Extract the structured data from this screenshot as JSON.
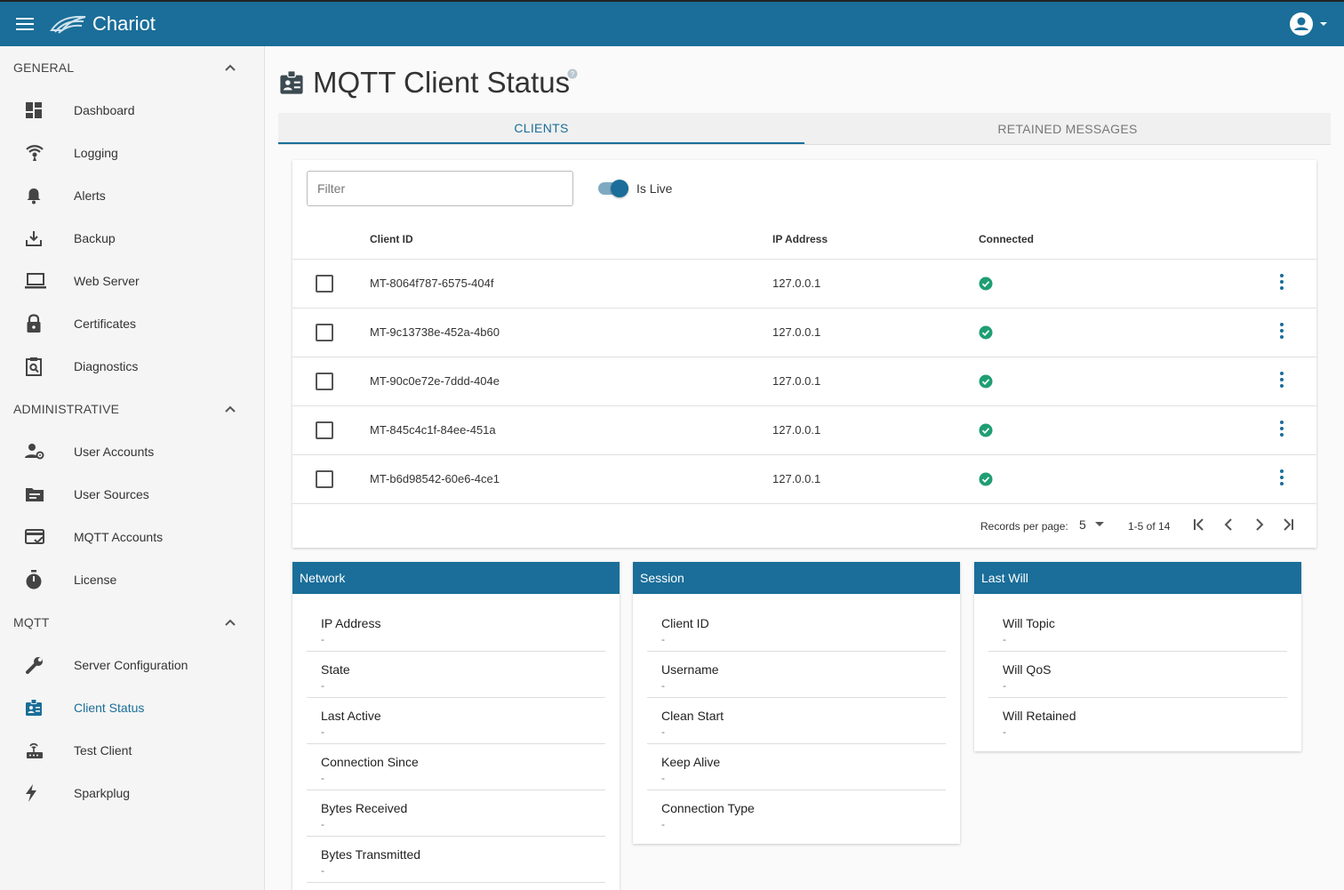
{
  "app": {
    "title": "Chariot"
  },
  "sidebar": {
    "sections": [
      {
        "title": "GENERAL",
        "items": [
          {
            "label": "Dashboard",
            "icon": "dashboard-icon"
          },
          {
            "label": "Logging",
            "icon": "broadcast-icon"
          },
          {
            "label": "Alerts",
            "icon": "bell-icon"
          },
          {
            "label": "Backup",
            "icon": "download-icon"
          },
          {
            "label": "Web Server",
            "icon": "laptop-icon"
          },
          {
            "label": "Certificates",
            "icon": "lock-icon"
          },
          {
            "label": "Diagnostics",
            "icon": "clipboard-search-icon"
          }
        ]
      },
      {
        "title": "ADMINISTRATIVE",
        "items": [
          {
            "label": "User Accounts",
            "icon": "user-gear-icon"
          },
          {
            "label": "User Sources",
            "icon": "folder-list-icon"
          },
          {
            "label": "MQTT Accounts",
            "icon": "card-check-icon"
          },
          {
            "label": "License",
            "icon": "stopwatch-icon"
          }
        ]
      },
      {
        "title": "MQTT",
        "items": [
          {
            "label": "Server Configuration",
            "icon": "wrench-icon"
          },
          {
            "label": "Client Status",
            "icon": "badge-icon",
            "active": true
          },
          {
            "label": "Test Client",
            "icon": "router-icon"
          },
          {
            "label": "Sparkplug",
            "icon": "lightning-icon"
          }
        ]
      }
    ]
  },
  "page": {
    "title": "MQTT Client Status"
  },
  "tabs": [
    {
      "label": "CLIENTS",
      "active": true
    },
    {
      "label": "RETAINED MESSAGES",
      "active": false
    }
  ],
  "filter": {
    "placeholder": "Filter",
    "value": ""
  },
  "live_toggle": {
    "label": "Is Live",
    "on": true
  },
  "table": {
    "columns": [
      "Client ID",
      "IP Address",
      "Connected"
    ],
    "rows": [
      {
        "client_id": "MT-8064f787-6575-404f",
        "ip": "127.0.0.1",
        "connected": true
      },
      {
        "client_id": "MT-9c13738e-452a-4b60",
        "ip": "127.0.0.1",
        "connected": true
      },
      {
        "client_id": "MT-90c0e72e-7ddd-404e",
        "ip": "127.0.0.1",
        "connected": true
      },
      {
        "client_id": "MT-845c4c1f-84ee-451a",
        "ip": "127.0.0.1",
        "connected": true
      },
      {
        "client_id": "MT-b6d98542-60e6-4ce1",
        "ip": "127.0.0.1",
        "connected": true
      }
    ]
  },
  "pagination": {
    "records_per_page_label": "Records per page:",
    "records_per_page": "5",
    "range": "1-5 of 14"
  },
  "panels": [
    {
      "title": "Network",
      "fields": [
        {
          "label": "IP Address",
          "value": "-"
        },
        {
          "label": "State",
          "value": "-"
        },
        {
          "label": "Last Active",
          "value": "-"
        },
        {
          "label": "Connection Since",
          "value": "-"
        },
        {
          "label": "Bytes Received",
          "value": "-"
        },
        {
          "label": "Bytes Transmitted",
          "value": "-"
        }
      ]
    },
    {
      "title": "Session",
      "fields": [
        {
          "label": "Client ID",
          "value": "-"
        },
        {
          "label": "Username",
          "value": "-"
        },
        {
          "label": "Clean Start",
          "value": "-"
        },
        {
          "label": "Keep Alive",
          "value": "-"
        },
        {
          "label": "Connection Type",
          "value": "-"
        }
      ]
    },
    {
      "title": "Last Will",
      "fields": [
        {
          "label": "Will Topic",
          "value": "-"
        },
        {
          "label": "Will QoS",
          "value": "-"
        },
        {
          "label": "Will Retained",
          "value": "-"
        }
      ]
    }
  ],
  "colors": {
    "primary": "#1a6e99",
    "success": "#1f9e73"
  }
}
